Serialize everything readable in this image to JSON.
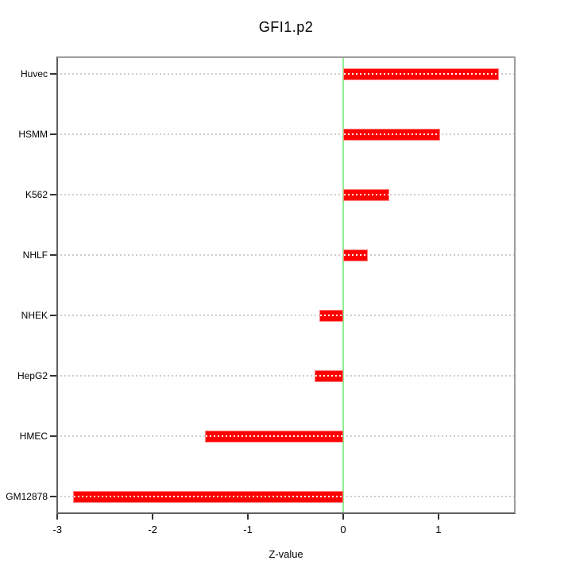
{
  "chart_data": {
    "type": "bar",
    "orientation": "horizontal",
    "title": "GFI1.p2",
    "xlabel": "Z-value",
    "ylabel": "",
    "categories": [
      "Huvec",
      "HSMM",
      "K562",
      "NHLF",
      "NHEK",
      "HepG2",
      "HMEC",
      "GM12878"
    ],
    "values": [
      1.62,
      1.0,
      0.47,
      0.24,
      -0.23,
      -0.28,
      -1.43,
      -2.82
    ],
    "xticks": [
      "-3",
      "-2",
      "-1",
      "0",
      "1"
    ],
    "xtick_values": [
      -3,
      -2,
      -1,
      0,
      1
    ],
    "xlim": [
      -3.01,
      1.81
    ],
    "grid": "horizontal-dotted",
    "legend": "none",
    "colors": {
      "bar": "#ff0000",
      "bar_edge": "#ff8080",
      "bar_centerline_dots": "#ffffff",
      "zero_line": "#90ee90",
      "gridline": "#cdcdcd",
      "frame": "#9e9e9e",
      "axis": "#5f5f5f",
      "text": "#000000"
    }
  }
}
